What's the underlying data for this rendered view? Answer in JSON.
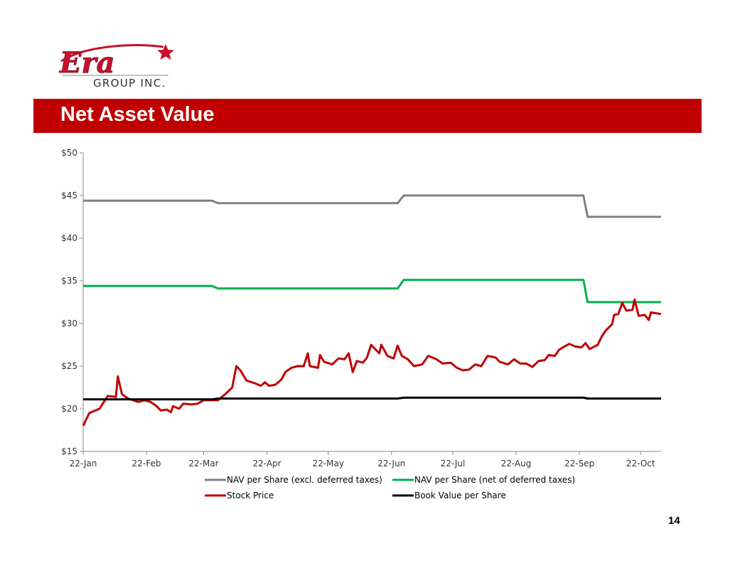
{
  "slide": {
    "logo_text": "Era",
    "logo_subtext": "GROUP INC.",
    "title": "Net Asset Value",
    "page_number": "14"
  },
  "colors": {
    "banner": "#c00000",
    "logo_red": "#c8102e",
    "nav_excl": "#808080",
    "nav_net": "#00b050",
    "stock": "#c00000",
    "book": "#000000"
  },
  "chart_data": {
    "type": "line",
    "title": "",
    "xlabel": "",
    "ylabel": "",
    "x_ticks": [
      "22-Jan",
      "22-Feb",
      "22-Mar",
      "22-Apr",
      "22-May",
      "22-Jun",
      "22-Jul",
      "22-Aug",
      "22-Sep",
      "22-Oct"
    ],
    "y_ticks": [
      "$15",
      "$20",
      "$25",
      "$30",
      "$35",
      "$40",
      "$45",
      "$50"
    ],
    "ylim": [
      15,
      50
    ],
    "x_range": [
      "22-Jan",
      "~1-Nov"
    ],
    "grid": false,
    "legend_position": "bottom",
    "series": [
      {
        "name": "NAV per Share (excl. deferred taxes)",
        "color": "#808080",
        "points": [
          [
            "22-Jan",
            44.4
          ],
          [
            "~26-Mar",
            44.4
          ],
          [
            "~29-Mar",
            44.1
          ],
          [
            "~25-Jun",
            44.1
          ],
          [
            "~28-Jun",
            45.0
          ],
          [
            "~24-Sep",
            45.0
          ],
          [
            "~26-Sep",
            42.5
          ],
          [
            "~1-Nov",
            42.5
          ]
        ]
      },
      {
        "name": "NAV per Share (net of deferred taxes)",
        "color": "#00b050",
        "points": [
          [
            "22-Jan",
            34.4
          ],
          [
            "~26-Mar",
            34.4
          ],
          [
            "~29-Mar",
            34.1
          ],
          [
            "~25-Jun",
            34.1
          ],
          [
            "~28-Jun",
            35.1
          ],
          [
            "~24-Sep",
            35.1
          ],
          [
            "~26-Sep",
            32.5
          ],
          [
            "~1-Nov",
            32.5
          ]
        ]
      },
      {
        "name": "Stock Price",
        "color": "#c00000",
        "points": [
          [
            "22-Jan",
            18.0
          ],
          [
            "~25-Jan",
            19.5
          ],
          [
            "~30-Jan",
            20.0
          ],
          [
            "~3-Feb",
            21.5
          ],
          [
            "~7-Feb",
            21.4
          ],
          [
            "~8-Feb",
            23.8
          ],
          [
            "~10-Feb",
            21.7
          ],
          [
            "~13-Feb",
            21.2
          ],
          [
            "~18-Feb",
            20.8
          ],
          [
            "~21-Feb",
            21.0
          ],
          [
            "~24-Feb",
            20.8
          ],
          [
            "~27-Feb",
            20.3
          ],
          [
            "~1-Mar",
            19.8
          ],
          [
            "~4-Mar",
            19.9
          ],
          [
            "~6-Mar",
            19.6
          ],
          [
            "~7-Mar",
            20.3
          ],
          [
            "~10-Mar",
            20.0
          ],
          [
            "~12-Mar",
            20.6
          ],
          [
            "~16-Mar",
            20.5
          ],
          [
            "~19-Mar",
            20.6
          ],
          [
            "~22-Mar",
            21.0
          ],
          [
            "~25-Mar",
            21.0
          ],
          [
            "~29-Mar",
            21.0
          ],
          [
            "~2-Apr",
            21.8
          ],
          [
            "~5-Apr",
            22.5
          ],
          [
            "~7-Apr",
            25.0
          ],
          [
            "~9-Apr",
            24.5
          ],
          [
            "~12-Apr",
            23.3
          ],
          [
            "~16-Apr",
            23.0
          ],
          [
            "~19-Apr",
            22.7
          ],
          [
            "~21-Apr",
            23.1
          ],
          [
            "~23-Apr",
            22.7
          ],
          [
            "~26-Apr",
            22.8
          ],
          [
            "~29-Apr",
            23.4
          ],
          [
            "~1-May",
            24.3
          ],
          [
            "~4-May",
            24.8
          ],
          [
            "~7-May",
            25.0
          ],
          [
            "~10-May",
            25.0
          ],
          [
            "~12-May",
            26.5
          ],
          [
            "~13-May",
            25.0
          ],
          [
            "~17-May",
            24.8
          ],
          [
            "~18-May",
            26.3
          ],
          [
            "~20-May",
            25.5
          ],
          [
            "~24-May",
            25.2
          ],
          [
            "~27-May",
            25.9
          ],
          [
            "~30-May",
            25.8
          ],
          [
            "~1-Jun",
            26.5
          ],
          [
            "~3-Jun",
            24.3
          ],
          [
            "~5-Jun",
            25.6
          ],
          [
            "~8-Jun",
            25.4
          ],
          [
            "~10-Jun",
            26.0
          ],
          [
            "~12-Jun",
            27.5
          ],
          [
            "~14-Jun",
            27.0
          ],
          [
            "~16-Jun",
            26.5
          ],
          [
            "~17-Jun",
            27.5
          ],
          [
            "~20-Jun",
            26.2
          ],
          [
            "~23-Jun",
            25.9
          ],
          [
            "~25-Jun",
            27.4
          ],
          [
            "~27-Jun",
            26.2
          ],
          [
            "~30-Jun",
            25.8
          ],
          [
            "~3-Jul",
            25.0
          ],
          [
            "~7-Jul",
            25.2
          ],
          [
            "~10-Jul",
            26.2
          ],
          [
            "~14-Jul",
            25.8
          ],
          [
            "~17-Jul",
            25.3
          ],
          [
            "~21-Jul",
            25.4
          ],
          [
            "~24-Jul",
            24.8
          ],
          [
            "~27-Jul",
            24.5
          ],
          [
            "~30-Jul",
            24.6
          ],
          [
            "~2-Aug",
            25.2
          ],
          [
            "~5-Aug",
            25.0
          ],
          [
            "~8-Aug",
            26.2
          ],
          [
            "~12-Aug",
            26.0
          ],
          [
            "~14-Aug",
            25.5
          ],
          [
            "~18-Aug",
            25.2
          ],
          [
            "~21-Aug",
            25.8
          ],
          [
            "~24-Aug",
            25.3
          ],
          [
            "~27-Aug",
            25.3
          ],
          [
            "~30-Aug",
            24.9
          ],
          [
            "~2-Sep",
            25.6
          ],
          [
            "~5-Sep",
            25.7
          ],
          [
            "~7-Sep",
            26.3
          ],
          [
            "~10-Sep",
            26.2
          ],
          [
            "~12-Sep",
            26.9
          ],
          [
            "~14-Sep",
            27.2
          ],
          [
            "~17-Sep",
            27.6
          ],
          [
            "~20-Sep",
            27.3
          ],
          [
            "~23-Sep",
            27.2
          ],
          [
            "~25-Sep",
            27.7
          ],
          [
            "~27-Sep",
            27.0
          ],
          [
            "~1-Oct",
            27.5
          ],
          [
            "~3-Oct",
            28.5
          ],
          [
            "~5-Oct",
            29.2
          ],
          [
            "~8-Oct",
            29.9
          ],
          [
            "~9-Oct",
            31.0
          ],
          [
            "~11-Oct",
            31.1
          ],
          [
            "~13-Oct",
            32.4
          ],
          [
            "~15-Oct",
            31.5
          ],
          [
            "~18-Oct",
            31.6
          ],
          [
            "~19-Oct",
            32.8
          ],
          [
            "~21-Oct",
            30.9
          ],
          [
            "~24-Oct",
            31.0
          ],
          [
            "~26-Oct",
            30.4
          ],
          [
            "~27-Oct",
            31.3
          ],
          [
            "~1-Nov",
            31.1
          ]
        ]
      },
      {
        "name": "Book Value per Share",
        "color": "#000000",
        "points": [
          [
            "22-Jan",
            21.1
          ],
          [
            "~26-Mar",
            21.1
          ],
          [
            "~29-Mar",
            21.2
          ],
          [
            "~25-Jun",
            21.2
          ],
          [
            "~28-Jun",
            21.3
          ],
          [
            "~24-Sep",
            21.3
          ],
          [
            "~26-Sep",
            21.2
          ],
          [
            "~1-Nov",
            21.2
          ]
        ]
      }
    ]
  }
}
